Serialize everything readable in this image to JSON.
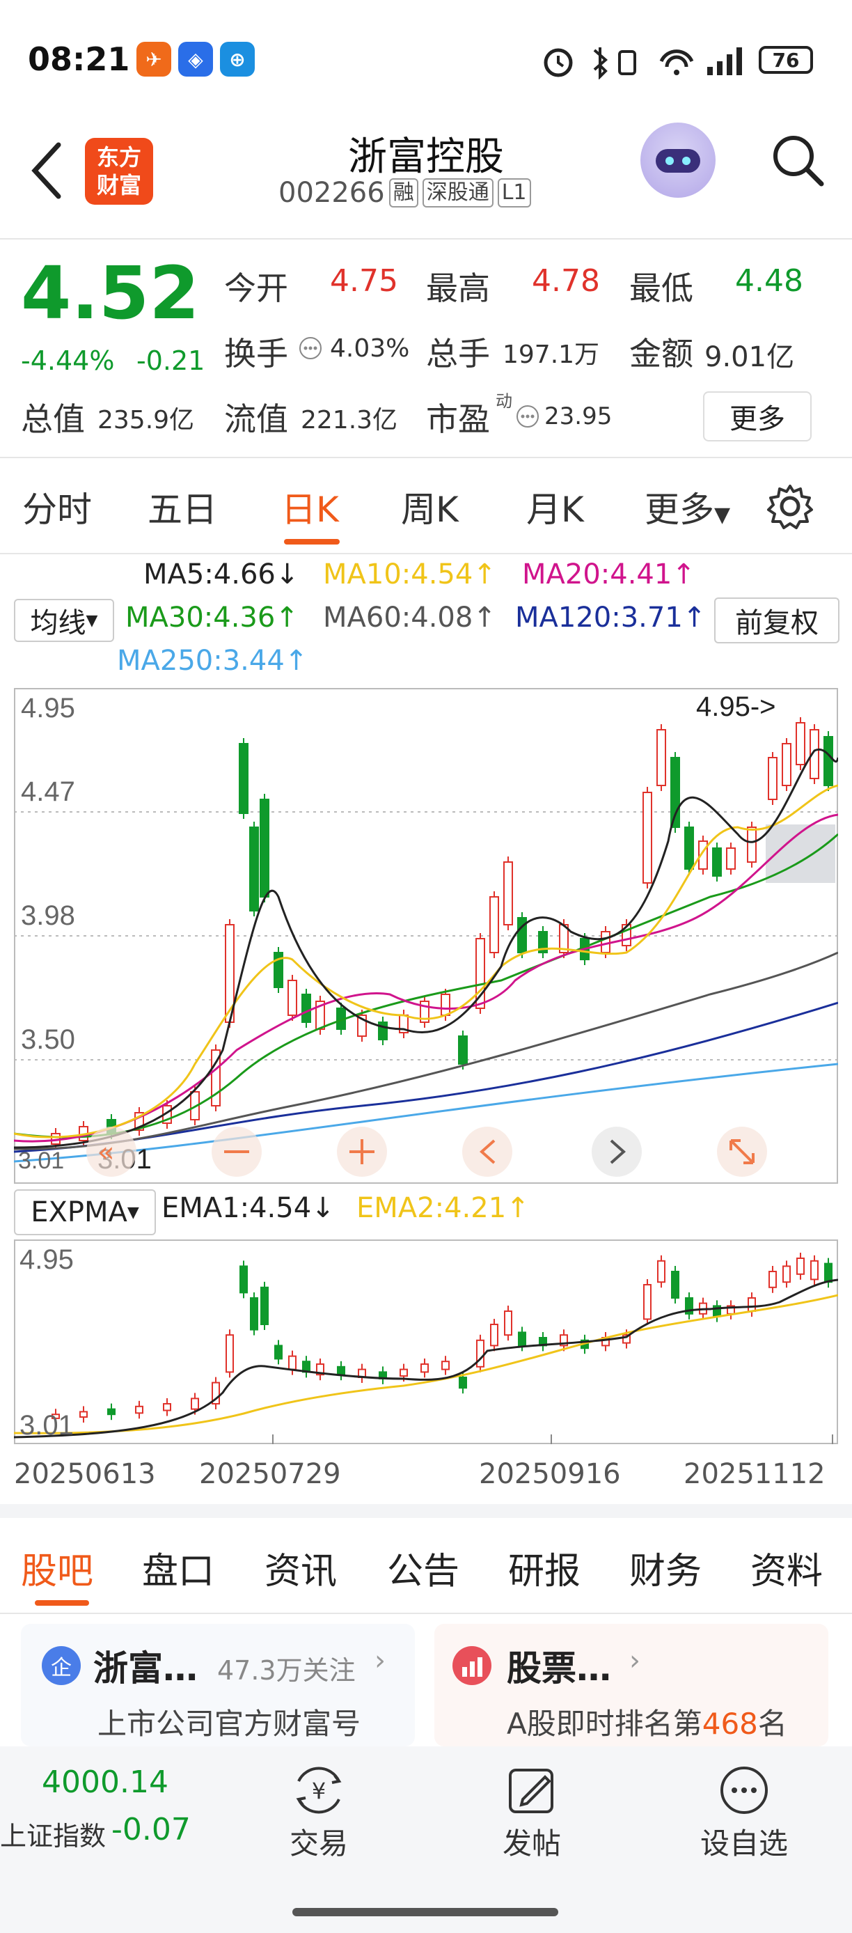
{
  "status_bar": {
    "time": "08:21",
    "battery": "76"
  },
  "header": {
    "logo_text": [
      "东方",
      "财富"
    ],
    "name": "浙富控股",
    "code": "002266",
    "tags": [
      "融",
      "深股通",
      "L1"
    ]
  },
  "quote": {
    "price": "4.52",
    "change_pct": "-4.44%",
    "change_abs": "-0.21",
    "open_label": "今开",
    "open": "4.75",
    "high_label": "最高",
    "high": "4.78",
    "low_label": "最低",
    "low": "4.48",
    "turnover_label": "换手",
    "turnover": "4.03%",
    "volume_label": "总手",
    "volume": "197.1万",
    "amount_label": "金额",
    "amount": "9.01亿",
    "mktcap_label": "总值",
    "mktcap": "235.9亿",
    "float_label": "流值",
    "float_cap": "221.3亿",
    "pe_label": "市盈",
    "pe_sup": "动",
    "pe": "23.95",
    "more": "更多"
  },
  "period_tabs": [
    "分时",
    "五日",
    "日K",
    "周K",
    "月K",
    "更多"
  ],
  "ma_legend": {
    "select": "均线",
    "fq": "前复权",
    "items": [
      {
        "text": "MA5:4.66↓",
        "color": "#222222"
      },
      {
        "text": "MA10:4.54↑",
        "color": "#f0c419"
      },
      {
        "text": "MA20:4.41↑",
        "color": "#d0148c"
      },
      {
        "text": "MA30:4.36↑",
        "color": "#1a9a1a"
      },
      {
        "text": "MA60:4.08↑",
        "color": "#555555"
      },
      {
        "text": "MA120:3.71↑",
        "color": "#1a2f9a"
      },
      {
        "text": "MA250:3.44↑",
        "color": "#4aa8e8"
      }
    ]
  },
  "main_chart": {
    "y_labels": [
      "4.95",
      "4.47",
      "3.98",
      "3.50"
    ],
    "high_marker": "4.95->",
    "low_marker": "3.01",
    "low_prefix": "3.01"
  },
  "expma": {
    "select": "EXPMA",
    "ema1": "EMA1:4.54↓",
    "ema2": "EMA2:4.21↑",
    "y_top": "4.95",
    "y_bottom": "3.01"
  },
  "x_dates": [
    "20250613",
    "20250729",
    "20250916",
    "20251112"
  ],
  "bottom_tabs": [
    "股吧",
    "盘口",
    "资讯",
    "公告",
    "研报",
    "财务",
    "资料"
  ],
  "cards": [
    {
      "badge": "企",
      "title": "浙富…",
      "follow": "47.3万关注",
      "sub": "上市公司官方财富号"
    },
    {
      "title": "股票…",
      "sub_prefix": "A股即时排名第",
      "sub_num": "468",
      "sub_suffix": "名"
    }
  ],
  "footer": {
    "index_value": "4000.14",
    "index_name": "上证指数",
    "index_change": "-0.07",
    "buttons": [
      "交易",
      "发帖",
      "设自选"
    ]
  },
  "colors": {
    "up": "#e0322b",
    "down": "#0f9a2c",
    "accent": "#f05a1a"
  }
}
